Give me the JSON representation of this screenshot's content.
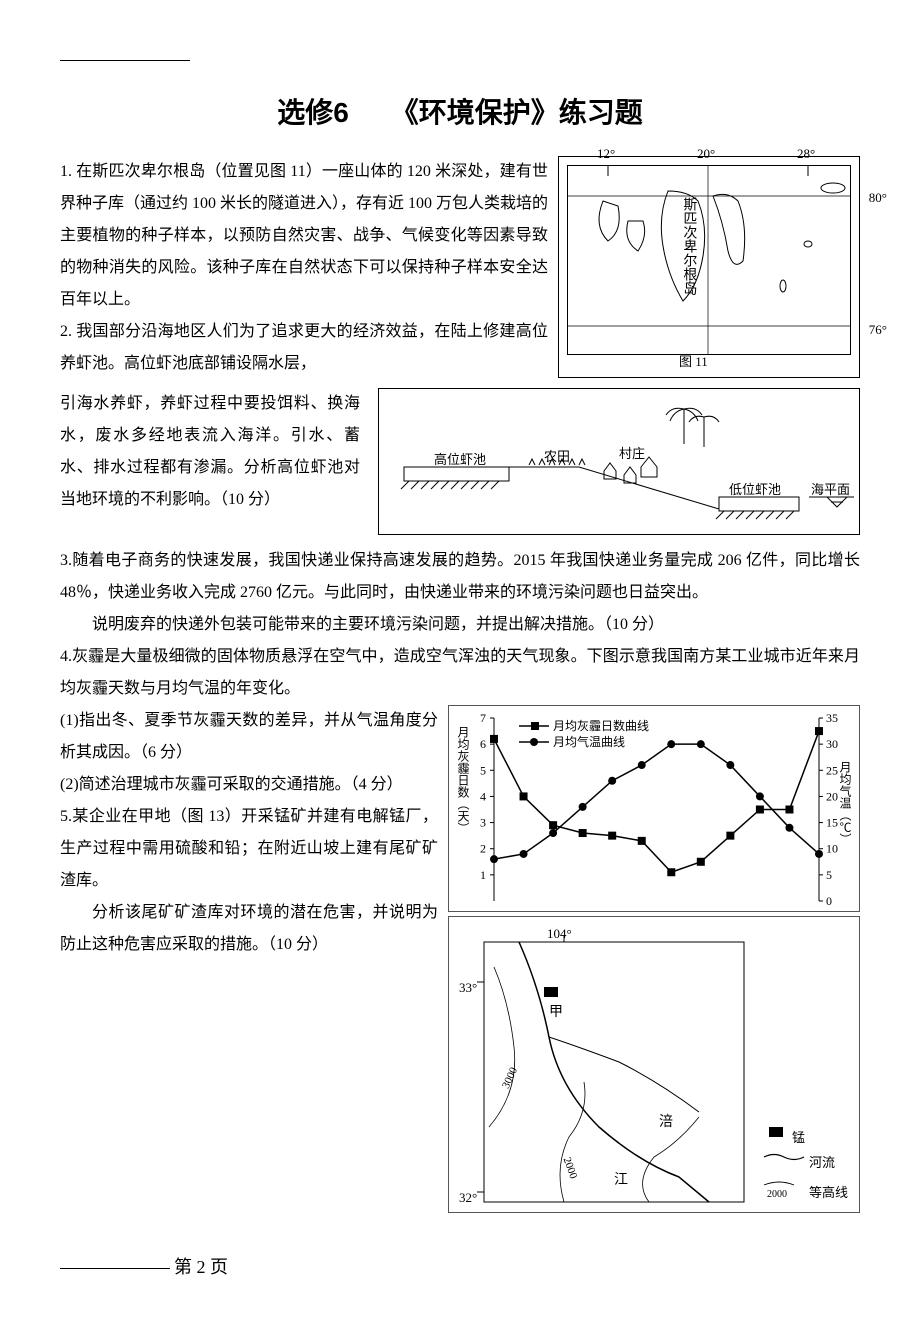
{
  "title": "选修6　　《环境保护》练习题",
  "q1": {
    "text": "1. 在斯匹次卑尔根岛（位置见图 11）一座山体的 120 米深处，建有世界种子库（通过约 100 米长的隧道进入），存有近 100 万包人类栽培的主要植物的种子样本，以预防自然灾害、战争、气候变化等因素导致的物种消失的风险。该种子库在自然状态下可以保持种子样本安全达百年以上。"
  },
  "q2": {
    "p1": "2. 我国部分沿海地区人们为了追求更大的经济效益，在陆上修建高位养虾池。高位虾池底部铺设隔水层，",
    "p2": "引海水养虾，养虾过程中要投饵料、换海水，废水多经地表流入海洋。引水、蓄水、排水过程都有渗漏。分析高位虾池对当地环境的不利影响。（10 分）"
  },
  "q3": {
    "p1": "3.随着电子商务的快速发展，我国快递业保持高速发展的趋势。2015 年我国快递业务量完成 206 亿件，同比增长 48％，快递业务收入完成 2760 亿元。与此同时，由快递业带来的环境污染问题也日益突出。",
    "p2": "说明废弃的快递外包装可能带来的主要环境污染问题，并提出解决措施。（10 分）"
  },
  "q4": {
    "intro": "4.灰霾是大量极细微的固体物质悬浮在空气中，造成空气浑浊的天气现象。下图示意我国南方某工业城市近年来月均灰霾天数与月均气温的年变化。",
    "sub1": "(1)指出冬、夏季节灰霾天数的差异，并从气温角度分析其成因。（6 分）",
    "sub2": "(2)简述治理城市灰霾可采取的交通措施。（4 分）"
  },
  "q5": {
    "p1": "5.某企业在甲地（图 13）开采锰矿并建有电解锰厂，生产过程中需用硫酸和铅；在附近山坡上建有尾矿矿渣库。",
    "p2": "分析该尾矿矿渣库对环境的潜在危害，并说明为防止这种危害应采取的措施。（10 分）"
  },
  "map1": {
    "lon_labels": [
      "12°",
      "20°",
      "28°"
    ],
    "lat_labels": [
      "80°",
      "76°"
    ],
    "island_label": "斯匹次卑尔根岛",
    "caption": "图 11"
  },
  "shrimp": {
    "high_pond": "高位虾池",
    "farmland": "农田",
    "village": "村庄",
    "low_pond": "低位虾池",
    "sea_level": "海平面"
  },
  "chart": {
    "legend1": "月均灰霾日数曲线",
    "legend2": "月均气温曲线",
    "y1_label": "月均灰霾日数（天）",
    "y2_label": "月均气温（℃）",
    "y1_ticks": [
      "7",
      "6",
      "5",
      "4",
      "3",
      "2",
      "1"
    ],
    "y2_ticks": [
      "35",
      "30",
      "25",
      "20",
      "15",
      "10",
      "5",
      "0"
    ],
    "haze_data": [
      6.2,
      4.0,
      2.9,
      2.6,
      2.5,
      2.3,
      1.1,
      1.5,
      2.5,
      3.5,
      3.5,
      6.5
    ],
    "temp_data": [
      8,
      9,
      13,
      18,
      23,
      26,
      30,
      30,
      26,
      20,
      14,
      9
    ],
    "line_color": "#000000",
    "bg": "#ffffff"
  },
  "map2": {
    "lon": "104°",
    "lat_top": "33°",
    "lat_bottom": "32°",
    "jia": "甲",
    "fu": "涪",
    "jiang": "江",
    "legend_mn": "锰",
    "legend_river": "河流",
    "legend_contour": "等高线",
    "contours": [
      "3000",
      "2000",
      "2000"
    ]
  },
  "page_footer": "第 2 页"
}
